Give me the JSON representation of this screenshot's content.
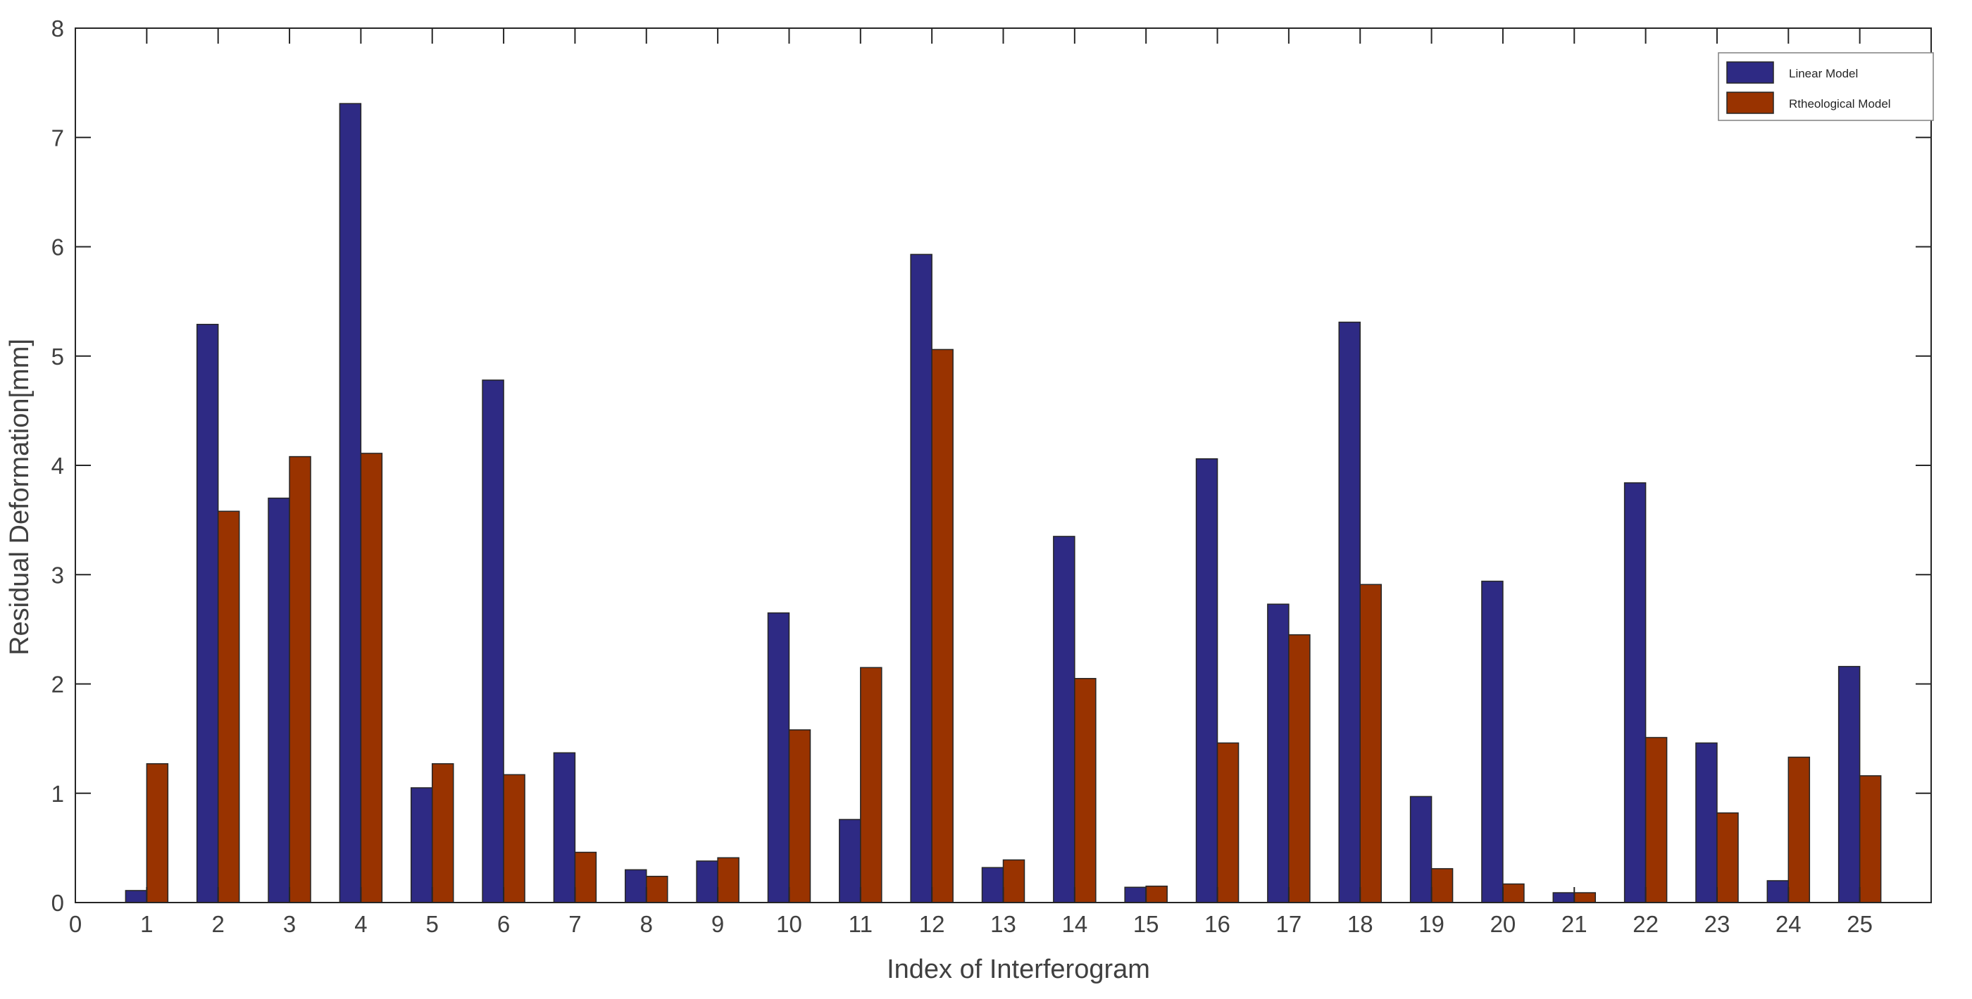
{
  "chart_data": {
    "type": "bar",
    "title": "",
    "xlabel": "Index of Interferogram",
    "ylabel": "Residual Deformation[mm]",
    "xlim": [
      0,
      26
    ],
    "ylim": [
      0,
      8
    ],
    "x_ticks": [
      0,
      1,
      2,
      3,
      4,
      5,
      6,
      7,
      8,
      9,
      10,
      11,
      12,
      13,
      14,
      15,
      16,
      17,
      18,
      19,
      20,
      21,
      22,
      23,
      24,
      25
    ],
    "y_ticks": [
      0,
      1,
      2,
      3,
      4,
      5,
      6,
      7,
      8
    ],
    "categories": [
      1,
      2,
      3,
      4,
      5,
      6,
      7,
      8,
      9,
      10,
      11,
      12,
      13,
      14,
      15,
      16,
      17,
      18,
      19,
      20,
      21,
      22,
      23,
      24,
      25
    ],
    "series": [
      {
        "name": "Linear Model",
        "color": "#2e2a84",
        "values": [
          0.11,
          5.29,
          3.7,
          7.31,
          1.05,
          4.78,
          1.37,
          0.3,
          0.38,
          2.65,
          0.76,
          5.93,
          0.32,
          3.35,
          0.14,
          4.06,
          2.73,
          5.31,
          0.97,
          2.94,
          0.09,
          3.84,
          1.46,
          0.2,
          2.16
        ]
      },
      {
        "name": "Rtheological Model",
        "color": "#993300",
        "values": [
          1.27,
          3.58,
          4.08,
          4.11,
          1.27,
          1.17,
          0.46,
          0.24,
          0.41,
          1.58,
          2.15,
          5.06,
          0.39,
          2.05,
          0.15,
          1.46,
          2.45,
          2.91,
          0.31,
          0.17,
          0.09,
          1.51,
          0.82,
          1.33,
          1.16
        ]
      }
    ],
    "grid": false,
    "legend_position": "top-right",
    "axis_color": "#262626",
    "text_color": "#404040"
  }
}
